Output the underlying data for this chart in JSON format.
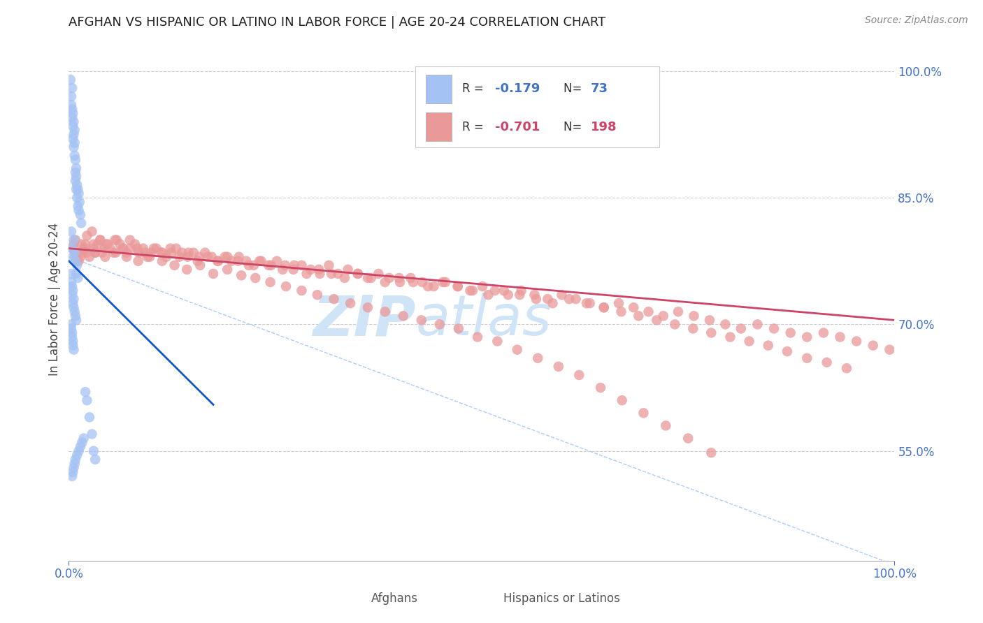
{
  "title": "AFGHAN VS HISPANIC OR LATINO IN LABOR FORCE | AGE 20-24 CORRELATION CHART",
  "source": "Source: ZipAtlas.com",
  "ylabel": "In Labor Force | Age 20-24",
  "right_ytick_labels": [
    "100.0%",
    "85.0%",
    "70.0%",
    "55.0%"
  ],
  "right_ytick_values": [
    1.0,
    0.85,
    0.7,
    0.55
  ],
  "xlim": [
    0.0,
    1.0
  ],
  "ylim": [
    0.42,
    1.04
  ],
  "afghan_R": -0.179,
  "afghan_N": 73,
  "hispanic_R": -0.701,
  "hispanic_N": 198,
  "afghan_color": "#a4c2f4",
  "hispanic_color": "#ea9999",
  "afghan_line_color": "#1155cc",
  "hispanic_line_color": "#cc4466",
  "ref_line_color": "#aaccff",
  "watermark_color": "#d0e4f7",
  "background_color": "#ffffff",
  "grid_color": "#cccccc",
  "title_fontsize": 13,
  "axis_label_color": "#4472c4",
  "legend_border_color": "#cccccc",
  "afghan_scatter_x": [
    0.002,
    0.003,
    0.003,
    0.004,
    0.004,
    0.004,
    0.005,
    0.005,
    0.005,
    0.006,
    0.006,
    0.006,
    0.007,
    0.007,
    0.007,
    0.008,
    0.008,
    0.008,
    0.009,
    0.009,
    0.009,
    0.01,
    0.01,
    0.011,
    0.011,
    0.012,
    0.012,
    0.013,
    0.014,
    0.015,
    0.003,
    0.004,
    0.005,
    0.006,
    0.007,
    0.008,
    0.009,
    0.01,
    0.011,
    0.003,
    0.004,
    0.005,
    0.006,
    0.003,
    0.004,
    0.005,
    0.006,
    0.007,
    0.008,
    0.009,
    0.003,
    0.004,
    0.005,
    0.003,
    0.004,
    0.005,
    0.006,
    0.02,
    0.022,
    0.025,
    0.028,
    0.03,
    0.032,
    0.018,
    0.016,
    0.014,
    0.012,
    0.01,
    0.008,
    0.007,
    0.006,
    0.005,
    0.004
  ],
  "afghan_scatter_y": [
    0.99,
    0.97,
    0.96,
    0.98,
    0.955,
    0.945,
    0.95,
    0.935,
    0.92,
    0.94,
    0.925,
    0.91,
    0.93,
    0.915,
    0.9,
    0.895,
    0.88,
    0.87,
    0.885,
    0.875,
    0.86,
    0.865,
    0.85,
    0.86,
    0.84,
    0.855,
    0.835,
    0.845,
    0.83,
    0.82,
    0.81,
    0.79,
    0.78,
    0.8,
    0.785,
    0.775,
    0.76,
    0.77,
    0.755,
    0.76,
    0.745,
    0.74,
    0.73,
    0.75,
    0.735,
    0.725,
    0.72,
    0.715,
    0.71,
    0.705,
    0.7,
    0.69,
    0.68,
    0.695,
    0.685,
    0.675,
    0.67,
    0.62,
    0.61,
    0.59,
    0.57,
    0.55,
    0.54,
    0.565,
    0.56,
    0.555,
    0.55,
    0.545,
    0.54,
    0.535,
    0.53,
    0.525,
    0.52
  ],
  "hispanic_scatter_x": [
    0.004,
    0.006,
    0.008,
    0.01,
    0.012,
    0.014,
    0.016,
    0.018,
    0.02,
    0.022,
    0.025,
    0.028,
    0.03,
    0.032,
    0.035,
    0.038,
    0.04,
    0.043,
    0.046,
    0.05,
    0.054,
    0.058,
    0.062,
    0.066,
    0.07,
    0.075,
    0.08,
    0.085,
    0.09,
    0.095,
    0.1,
    0.106,
    0.112,
    0.118,
    0.124,
    0.13,
    0.137,
    0.144,
    0.151,
    0.158,
    0.165,
    0.173,
    0.181,
    0.189,
    0.197,
    0.206,
    0.215,
    0.224,
    0.233,
    0.242,
    0.252,
    0.262,
    0.272,
    0.282,
    0.293,
    0.304,
    0.315,
    0.326,
    0.338,
    0.35,
    0.362,
    0.375,
    0.388,
    0.401,
    0.414,
    0.428,
    0.442,
    0.456,
    0.471,
    0.486,
    0.501,
    0.516,
    0.532,
    0.548,
    0.564,
    0.58,
    0.597,
    0.614,
    0.631,
    0.648,
    0.666,
    0.684,
    0.702,
    0.72,
    0.738,
    0.757,
    0.776,
    0.795,
    0.814,
    0.834,
    0.854,
    0.874,
    0.894,
    0.914,
    0.934,
    0.954,
    0.974,
    0.994,
    0.008,
    0.015,
    0.022,
    0.03,
    0.038,
    0.047,
    0.056,
    0.065,
    0.074,
    0.083,
    0.093,
    0.103,
    0.113,
    0.123,
    0.134,
    0.145,
    0.156,
    0.168,
    0.18,
    0.192,
    0.205,
    0.218,
    0.231,
    0.245,
    0.259,
    0.273,
    0.288,
    0.303,
    0.318,
    0.334,
    0.35,
    0.366,
    0.383,
    0.4,
    0.417,
    0.435,
    0.453,
    0.471,
    0.489,
    0.508,
    0.527,
    0.546,
    0.566,
    0.586,
    0.606,
    0.627,
    0.648,
    0.669,
    0.69,
    0.712,
    0.734,
    0.756,
    0.778,
    0.801,
    0.824,
    0.847,
    0.87,
    0.894,
    0.918,
    0.942,
    0.01,
    0.02,
    0.032,
    0.044,
    0.057,
    0.07,
    0.084,
    0.098,
    0.113,
    0.128,
    0.143,
    0.159,
    0.175,
    0.192,
    0.209,
    0.226,
    0.244,
    0.263,
    0.282,
    0.301,
    0.321,
    0.341,
    0.362,
    0.383,
    0.405,
    0.427,
    0.449,
    0.472,
    0.495,
    0.519,
    0.543,
    0.568,
    0.593,
    0.618,
    0.644,
    0.67,
    0.696,
    0.723,
    0.75,
    0.778
  ],
  "hispanic_scatter_y": [
    0.79,
    0.795,
    0.78,
    0.785,
    0.775,
    0.78,
    0.785,
    0.79,
    0.795,
    0.785,
    0.78,
    0.81,
    0.79,
    0.785,
    0.795,
    0.8,
    0.785,
    0.79,
    0.795,
    0.79,
    0.785,
    0.8,
    0.795,
    0.79,
    0.785,
    0.79,
    0.795,
    0.785,
    0.79,
    0.78,
    0.785,
    0.79,
    0.785,
    0.78,
    0.785,
    0.79,
    0.785,
    0.78,
    0.785,
    0.78,
    0.785,
    0.78,
    0.775,
    0.78,
    0.775,
    0.78,
    0.775,
    0.77,
    0.775,
    0.77,
    0.775,
    0.77,
    0.765,
    0.77,
    0.765,
    0.76,
    0.77,
    0.76,
    0.765,
    0.76,
    0.755,
    0.76,
    0.755,
    0.75,
    0.755,
    0.75,
    0.745,
    0.75,
    0.745,
    0.74,
    0.745,
    0.74,
    0.735,
    0.74,
    0.735,
    0.73,
    0.735,
    0.73,
    0.725,
    0.72,
    0.725,
    0.72,
    0.715,
    0.71,
    0.715,
    0.71,
    0.705,
    0.7,
    0.695,
    0.7,
    0.695,
    0.69,
    0.685,
    0.69,
    0.685,
    0.68,
    0.675,
    0.67,
    0.8,
    0.795,
    0.805,
    0.795,
    0.8,
    0.795,
    0.8,
    0.79,
    0.8,
    0.79,
    0.785,
    0.79,
    0.785,
    0.79,
    0.78,
    0.785,
    0.775,
    0.78,
    0.775,
    0.78,
    0.775,
    0.77,
    0.775,
    0.77,
    0.765,
    0.77,
    0.76,
    0.765,
    0.76,
    0.755,
    0.76,
    0.755,
    0.75,
    0.755,
    0.75,
    0.745,
    0.75,
    0.745,
    0.74,
    0.735,
    0.74,
    0.735,
    0.73,
    0.725,
    0.73,
    0.725,
    0.72,
    0.715,
    0.71,
    0.705,
    0.7,
    0.695,
    0.69,
    0.685,
    0.68,
    0.675,
    0.668,
    0.66,
    0.655,
    0.648,
    0.775,
    0.79,
    0.785,
    0.78,
    0.785,
    0.78,
    0.775,
    0.78,
    0.775,
    0.77,
    0.765,
    0.77,
    0.76,
    0.765,
    0.758,
    0.755,
    0.75,
    0.745,
    0.74,
    0.735,
    0.73,
    0.725,
    0.72,
    0.715,
    0.71,
    0.705,
    0.7,
    0.695,
    0.685,
    0.68,
    0.67,
    0.66,
    0.65,
    0.64,
    0.625,
    0.61,
    0.595,
    0.58,
    0.565,
    0.548
  ]
}
